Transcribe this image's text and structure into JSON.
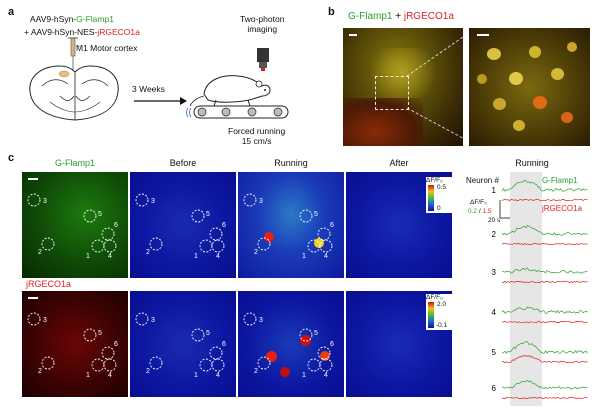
{
  "panel_a": {
    "label": "a",
    "line1_prefix": "AAV9-hSyn-",
    "line1_colored": "G-Flamp1",
    "line2_prefix": "+ AAV9-hSyn-NES-",
    "line2_colored": "jRGECO1a",
    "region": "M1 Motor cortex",
    "weeks": "3 Weeks",
    "imaging": "Two-photon\nimaging",
    "running": "Forced running\n15 cm/s"
  },
  "panel_b": {
    "label": "b",
    "title_green": "G-Flamp1",
    "title_plus": " + ",
    "title_red": "jRGECO1a"
  },
  "panel_c": {
    "label": "c",
    "left_titles": [
      "G-Flamp1",
      "Before",
      "Running",
      "After"
    ],
    "row2_label": "jRGECO1a",
    "colorbar_top": {
      "label": "ΔF/F₀",
      "max": "0.5",
      "min": "0"
    },
    "colorbar_bottom": {
      "label": "ΔF/F₀",
      "max": "2.0",
      "min": "-0.1"
    },
    "cell_ids": [
      "1",
      "2",
      "3",
      "4",
      "5",
      "6"
    ],
    "traces": {
      "title": "Running",
      "axis_label": "Neuron #",
      "legend_green": "G-Flamp1",
      "legend_red": "jRGECO1a",
      "scale_label": "ΔF/F₀",
      "scale_values_green": "0.2",
      "scale_values_sep": " / ",
      "scale_values_red": "1.5",
      "time_scale": "20 s",
      "neurons": [
        "1",
        "2",
        "3",
        "4",
        "5",
        "6"
      ]
    }
  },
  "colors": {
    "green": "#2ba02b",
    "red": "#e02020",
    "shade": "#e6e6e6"
  }
}
